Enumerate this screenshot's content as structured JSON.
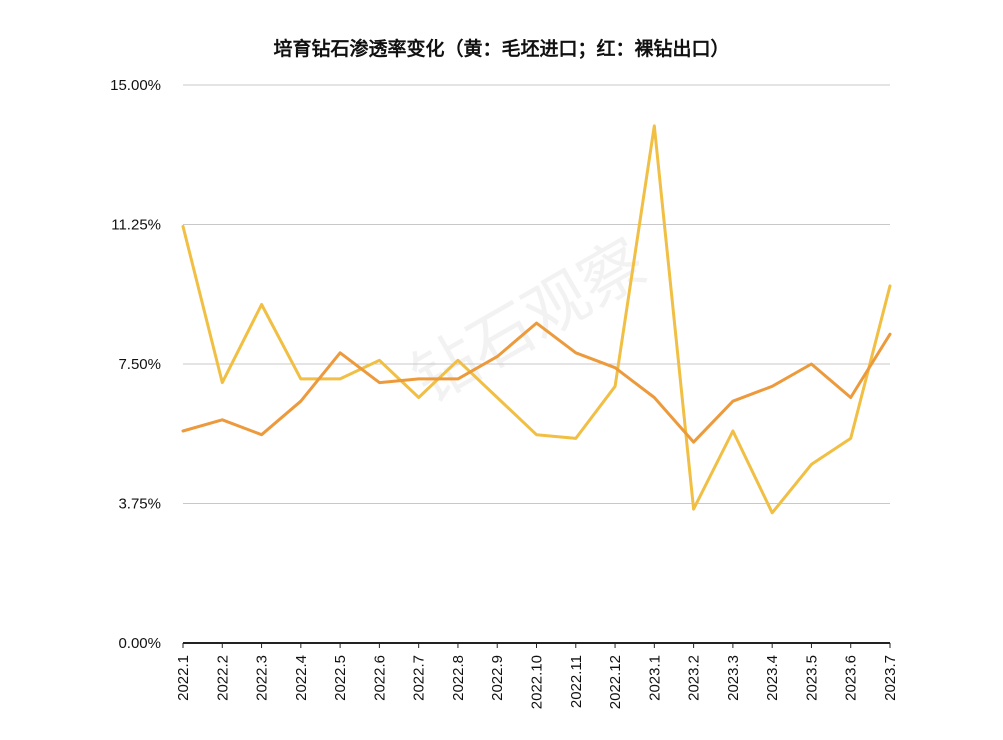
{
  "chart_data": {
    "type": "line",
    "title": "培育钻石渗透率变化（黄：毛坯进口；红：裸钻出口）",
    "watermark": "钻石观察",
    "categories": [
      "2022.1",
      "2022.2",
      "2022.3",
      "2022.4",
      "2022.5",
      "2022.6",
      "2022.7",
      "2022.8",
      "2022.9",
      "2022.10",
      "2022.11",
      "2022.12",
      "2023.1",
      "2023.2",
      "2023.3",
      "2023.4",
      "2023.5",
      "2023.6",
      "2023.7"
    ],
    "ylim": [
      0,
      15
    ],
    "yticks": [
      0,
      3.75,
      7.5,
      11.25,
      15
    ],
    "ytick_labels": [
      "0.00%",
      "3.75%",
      "7.50%",
      "11.25%",
      "15.00%"
    ],
    "xlabel": "",
    "ylabel": "",
    "grid": true,
    "series": [
      {
        "name": "毛坯进口",
        "color": "#f0bf43",
        "values": [
          11.2,
          7.0,
          9.1,
          7.1,
          7.1,
          7.6,
          6.6,
          7.6,
          6.6,
          5.6,
          5.5,
          6.9,
          13.9,
          3.6,
          5.7,
          3.5,
          4.8,
          5.5,
          9.6
        ]
      },
      {
        "name": "裸钻出口",
        "color": "#ec9a3c",
        "values": [
          5.7,
          6.0,
          5.6,
          6.5,
          7.8,
          7.0,
          7.1,
          7.1,
          7.7,
          8.6,
          7.8,
          7.4,
          6.6,
          5.4,
          6.5,
          6.9,
          7.5,
          6.6,
          8.3
        ]
      }
    ]
  }
}
